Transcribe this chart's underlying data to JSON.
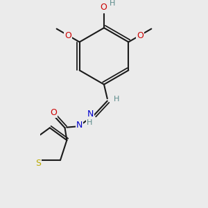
{
  "bg_color": "#ebebeb",
  "bond_color": "#1a1a1a",
  "bond_width": 1.5,
  "dbo": 0.055,
  "atom_colors": {
    "C": "#1a1a1a",
    "H": "#5a8a8a",
    "O": "#cc0000",
    "N": "#0000cc",
    "S": "#bbaa00"
  },
  "font_size": 8.5,
  "fig_size": [
    3.0,
    3.0
  ],
  "dpi": 100
}
